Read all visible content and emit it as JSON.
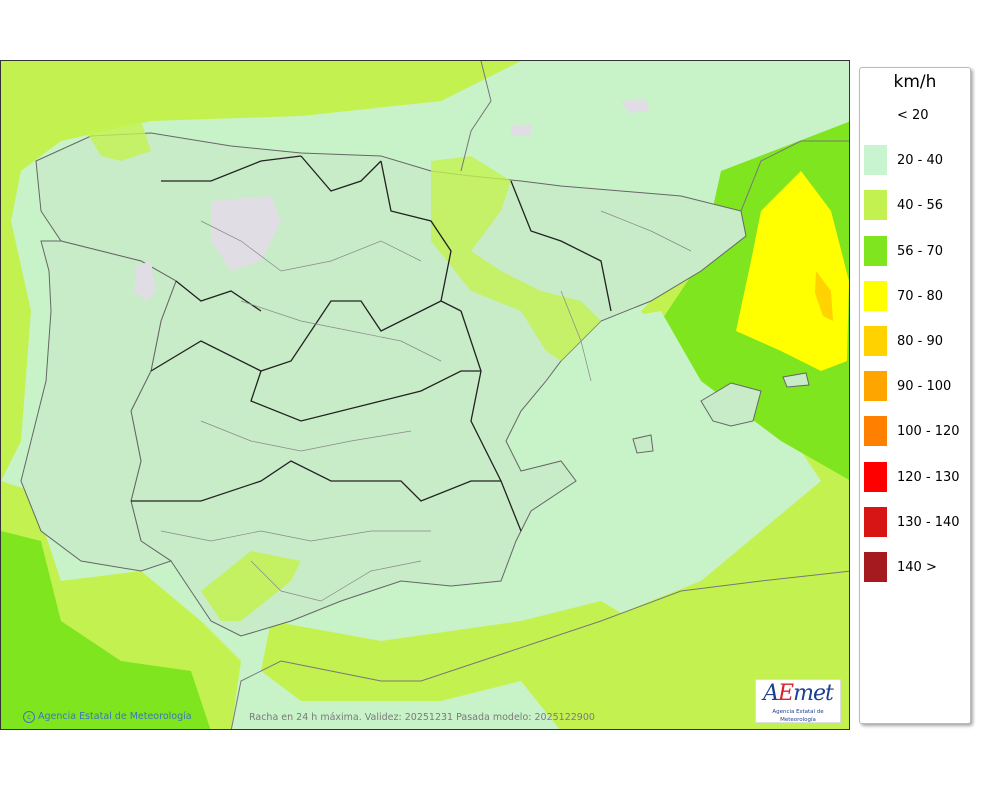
{
  "legend": {
    "unit": "km/h",
    "items": [
      {
        "label": "< 20",
        "color": "#ffffff"
      },
      {
        "label": "20 - 40",
        "color": "#c8f5cf"
      },
      {
        "label": "40 - 56",
        "color": "#c3f250"
      },
      {
        "label": "56 - 70",
        "color": "#7fe51e"
      },
      {
        "label": "70 - 80",
        "color": "#ffff00"
      },
      {
        "label": "80 - 90",
        "color": "#ffd200"
      },
      {
        "label": "90 - 100",
        "color": "#ffa500"
      },
      {
        "label": "100 - 120",
        "color": "#ff7f00"
      },
      {
        "label": "120 - 130",
        "color": "#ff0000"
      },
      {
        "label": "130 - 140",
        "color": "#d81515"
      },
      {
        "label": "140 >",
        "color": "#a51a1f"
      }
    ]
  },
  "footer": {
    "copyright": "Agencia Estatal de Meteorología",
    "caption": "Racha en 24 h máxima. Validez: 20251231 Pasada modelo: 2025122900"
  },
  "logo": {
    "brand_a": "A",
    "brand_e": "E",
    "brand_rest": "met",
    "subtitle": "Agencia Estatal de Meteorología"
  },
  "colors": {
    "sea_light": "#c8f2c8",
    "gust_40_56": "#c3f250",
    "gust_56_70": "#7fe51e",
    "gust_70_80": "#ffff00",
    "gust_80_90": "#ffd200"
  }
}
